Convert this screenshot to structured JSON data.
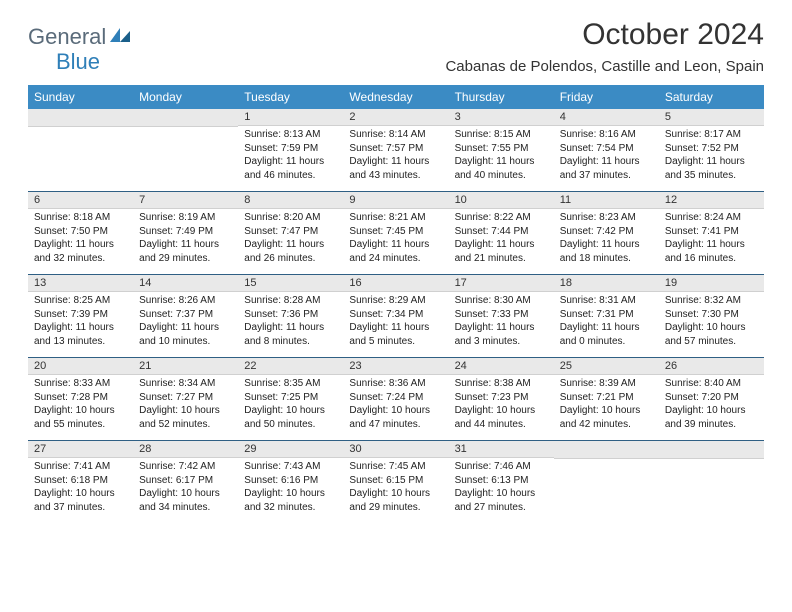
{
  "logo": {
    "general": "General",
    "blue": "Blue"
  },
  "title": "October 2024",
  "location": "Cabanas de Polendos, Castille and Leon, Spain",
  "colors": {
    "header_bg": "#3b8bc4",
    "header_text": "#ffffff",
    "daynum_bg": "#e9e9e9",
    "separator": "#2f5f84",
    "logo_general": "#5a6b7a",
    "logo_blue": "#2f7fb8"
  },
  "weekdays": [
    "Sunday",
    "Monday",
    "Tuesday",
    "Wednesday",
    "Thursday",
    "Friday",
    "Saturday"
  ],
  "weeks": [
    [
      null,
      null,
      {
        "n": "1",
        "sr": "8:13 AM",
        "ss": "7:59 PM",
        "dl": "11 hours and 46 minutes."
      },
      {
        "n": "2",
        "sr": "8:14 AM",
        "ss": "7:57 PM",
        "dl": "11 hours and 43 minutes."
      },
      {
        "n": "3",
        "sr": "8:15 AM",
        "ss": "7:55 PM",
        "dl": "11 hours and 40 minutes."
      },
      {
        "n": "4",
        "sr": "8:16 AM",
        "ss": "7:54 PM",
        "dl": "11 hours and 37 minutes."
      },
      {
        "n": "5",
        "sr": "8:17 AM",
        "ss": "7:52 PM",
        "dl": "11 hours and 35 minutes."
      }
    ],
    [
      {
        "n": "6",
        "sr": "8:18 AM",
        "ss": "7:50 PM",
        "dl": "11 hours and 32 minutes."
      },
      {
        "n": "7",
        "sr": "8:19 AM",
        "ss": "7:49 PM",
        "dl": "11 hours and 29 minutes."
      },
      {
        "n": "8",
        "sr": "8:20 AM",
        "ss": "7:47 PM",
        "dl": "11 hours and 26 minutes."
      },
      {
        "n": "9",
        "sr": "8:21 AM",
        "ss": "7:45 PM",
        "dl": "11 hours and 24 minutes."
      },
      {
        "n": "10",
        "sr": "8:22 AM",
        "ss": "7:44 PM",
        "dl": "11 hours and 21 minutes."
      },
      {
        "n": "11",
        "sr": "8:23 AM",
        "ss": "7:42 PM",
        "dl": "11 hours and 18 minutes."
      },
      {
        "n": "12",
        "sr": "8:24 AM",
        "ss": "7:41 PM",
        "dl": "11 hours and 16 minutes."
      }
    ],
    [
      {
        "n": "13",
        "sr": "8:25 AM",
        "ss": "7:39 PM",
        "dl": "11 hours and 13 minutes."
      },
      {
        "n": "14",
        "sr": "8:26 AM",
        "ss": "7:37 PM",
        "dl": "11 hours and 10 minutes."
      },
      {
        "n": "15",
        "sr": "8:28 AM",
        "ss": "7:36 PM",
        "dl": "11 hours and 8 minutes."
      },
      {
        "n": "16",
        "sr": "8:29 AM",
        "ss": "7:34 PM",
        "dl": "11 hours and 5 minutes."
      },
      {
        "n": "17",
        "sr": "8:30 AM",
        "ss": "7:33 PM",
        "dl": "11 hours and 3 minutes."
      },
      {
        "n": "18",
        "sr": "8:31 AM",
        "ss": "7:31 PM",
        "dl": "11 hours and 0 minutes."
      },
      {
        "n": "19",
        "sr": "8:32 AM",
        "ss": "7:30 PM",
        "dl": "10 hours and 57 minutes."
      }
    ],
    [
      {
        "n": "20",
        "sr": "8:33 AM",
        "ss": "7:28 PM",
        "dl": "10 hours and 55 minutes."
      },
      {
        "n": "21",
        "sr": "8:34 AM",
        "ss": "7:27 PM",
        "dl": "10 hours and 52 minutes."
      },
      {
        "n": "22",
        "sr": "8:35 AM",
        "ss": "7:25 PM",
        "dl": "10 hours and 50 minutes."
      },
      {
        "n": "23",
        "sr": "8:36 AM",
        "ss": "7:24 PM",
        "dl": "10 hours and 47 minutes."
      },
      {
        "n": "24",
        "sr": "8:38 AM",
        "ss": "7:23 PM",
        "dl": "10 hours and 44 minutes."
      },
      {
        "n": "25",
        "sr": "8:39 AM",
        "ss": "7:21 PM",
        "dl": "10 hours and 42 minutes."
      },
      {
        "n": "26",
        "sr": "8:40 AM",
        "ss": "7:20 PM",
        "dl": "10 hours and 39 minutes."
      }
    ],
    [
      {
        "n": "27",
        "sr": "7:41 AM",
        "ss": "6:18 PM",
        "dl": "10 hours and 37 minutes."
      },
      {
        "n": "28",
        "sr": "7:42 AM",
        "ss": "6:17 PM",
        "dl": "10 hours and 34 minutes."
      },
      {
        "n": "29",
        "sr": "7:43 AM",
        "ss": "6:16 PM",
        "dl": "10 hours and 32 minutes."
      },
      {
        "n": "30",
        "sr": "7:45 AM",
        "ss": "6:15 PM",
        "dl": "10 hours and 29 minutes."
      },
      {
        "n": "31",
        "sr": "7:46 AM",
        "ss": "6:13 PM",
        "dl": "10 hours and 27 minutes."
      },
      null,
      null
    ]
  ],
  "labels": {
    "sunrise": "Sunrise:",
    "sunset": "Sunset:",
    "daylight": "Daylight:"
  }
}
